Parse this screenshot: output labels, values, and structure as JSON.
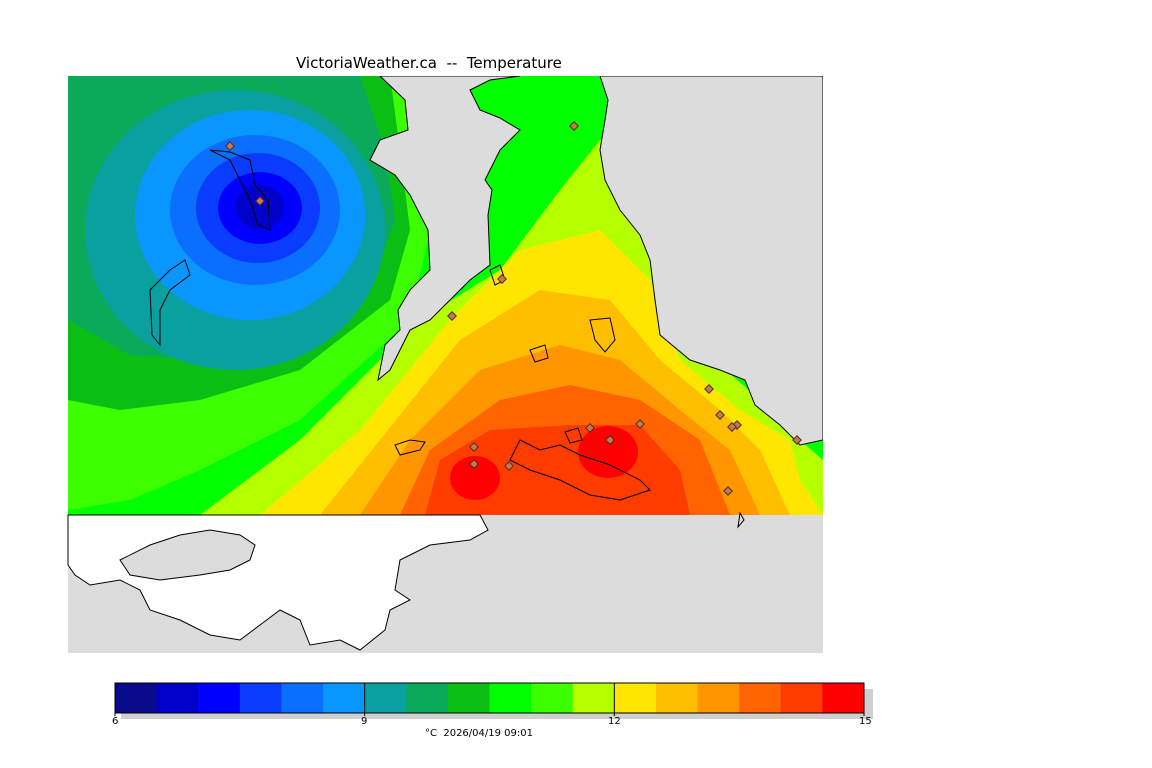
{
  "title": "VictoriaWeather.ca  --  Temperature",
  "caption": "°C  2026/04/19 09:01",
  "colorbar": {
    "labels": [
      "6",
      "9",
      "12",
      "15"
    ],
    "colors": [
      "#0a0a8c",
      "#0000c8",
      "#0000ff",
      "#0a3cff",
      "#0a6eff",
      "#0a96ff",
      "#0aa0a0",
      "#0aaa5a",
      "#0abe14",
      "#00ff00",
      "#3cff00",
      "#b4ff00",
      "#ffe600",
      "#ffbe00",
      "#ff9600",
      "#ff6400",
      "#ff3c00",
      "#ff0000"
    ]
  },
  "map": {
    "land_color": "#dcdcdc",
    "water_color": "#ffffff",
    "station_count": 17
  }
}
